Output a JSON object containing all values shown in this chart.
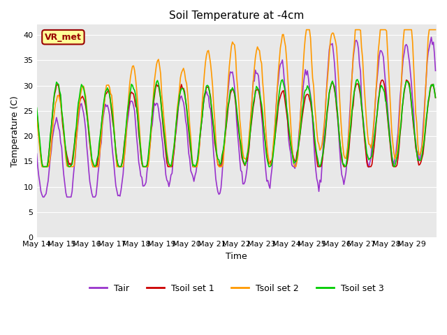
{
  "title": "Soil Temperature at -4cm",
  "xlabel": "Time",
  "ylabel": "Temperature (C)",
  "ylim": [
    0,
    42
  ],
  "yticks": [
    0,
    5,
    10,
    15,
    20,
    25,
    30,
    35,
    40
  ],
  "date_labels": [
    "May 14",
    "May 15",
    "May 16",
    "May 17",
    "May 18",
    "May 19",
    "May 20",
    "May 21",
    "May 22",
    "May 23",
    "May 24",
    "May 25",
    "May 26",
    "May 27",
    "May 28",
    "May 29"
  ],
  "n_days": 16,
  "bg_color": "#e8e8e8",
  "fig_bg": "#ffffff",
  "colors": {
    "Tair": "#9933cc",
    "Tsoil1": "#cc0000",
    "Tsoil2": "#ff9900",
    "Tsoil3": "#00cc00"
  },
  "legend_labels": [
    "Tair",
    "Tsoil set 1",
    "Tsoil set 2",
    "Tsoil set 3"
  ],
  "annotation_text": "VR_met",
  "annotation_color": "#990000",
  "annotation_bg": "#ffff99",
  "annotation_border": "#990000"
}
